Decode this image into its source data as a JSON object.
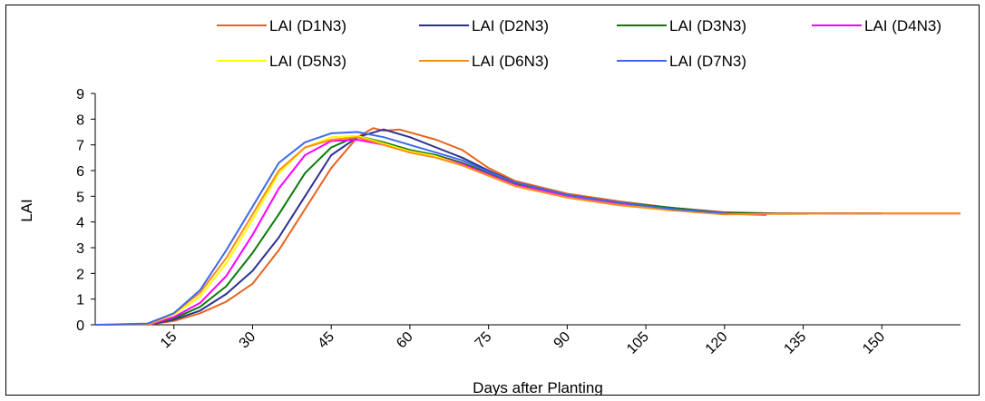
{
  "chart_data": {
    "type": "line",
    "title": "",
    "xlabel": "Days after Planting",
    "ylabel": "LAI",
    "xlim": [
      0,
      165
    ],
    "ylim": [
      0,
      9
    ],
    "x_ticks": [
      15,
      30,
      45,
      60,
      75,
      90,
      105,
      120,
      135,
      150
    ],
    "y_ticks": [
      0,
      1,
      2,
      3,
      4,
      5,
      6,
      7,
      8,
      9
    ],
    "grid": false,
    "legend_position": "top",
    "series": [
      {
        "name": "LAI (D1N3)",
        "color": "#E8641E",
        "points": [
          [
            0,
            0
          ],
          [
            10,
            0
          ],
          [
            15,
            0.15
          ],
          [
            20,
            0.45
          ],
          [
            25,
            0.9
          ],
          [
            30,
            1.6
          ],
          [
            35,
            2.9
          ],
          [
            40,
            4.5
          ],
          [
            45,
            6.1
          ],
          [
            50,
            7.3
          ],
          [
            53,
            7.65
          ],
          [
            55,
            7.55
          ],
          [
            58,
            7.6
          ],
          [
            65,
            7.2
          ],
          [
            70,
            6.8
          ],
          [
            75,
            6.1
          ],
          [
            80,
            5.6
          ],
          [
            90,
            5.1
          ],
          [
            100,
            4.8
          ],
          [
            110,
            4.55
          ],
          [
            120,
            4.38
          ],
          [
            130,
            4.33
          ],
          [
            150,
            4.33
          ],
          [
            165,
            4.33
          ]
        ]
      },
      {
        "name": "LAI (D2N3)",
        "color": "#2E3192",
        "points": [
          [
            0,
            0
          ],
          [
            10,
            0
          ],
          [
            15,
            0.2
          ],
          [
            20,
            0.55
          ],
          [
            25,
            1.2
          ],
          [
            30,
            2.1
          ],
          [
            35,
            3.4
          ],
          [
            40,
            5.0
          ],
          [
            45,
            6.6
          ],
          [
            50,
            7.3
          ],
          [
            55,
            7.6
          ],
          [
            60,
            7.3
          ],
          [
            65,
            6.9
          ],
          [
            70,
            6.5
          ],
          [
            75,
            6.0
          ],
          [
            80,
            5.55
          ],
          [
            90,
            5.05
          ],
          [
            100,
            4.75
          ],
          [
            110,
            4.55
          ],
          [
            120,
            4.35
          ],
          [
            130,
            4.33
          ],
          [
            150,
            4.33
          ]
        ]
      },
      {
        "name": "LAI (D3N3)",
        "color": "#0B7B0B",
        "points": [
          [
            0,
            0
          ],
          [
            10,
            0
          ],
          [
            15,
            0.25
          ],
          [
            20,
            0.7
          ],
          [
            25,
            1.5
          ],
          [
            30,
            2.8
          ],
          [
            35,
            4.3
          ],
          [
            40,
            5.9
          ],
          [
            45,
            6.9
          ],
          [
            50,
            7.35
          ],
          [
            55,
            7.1
          ],
          [
            60,
            6.8
          ],
          [
            65,
            6.6
          ],
          [
            70,
            6.3
          ],
          [
            75,
            5.9
          ],
          [
            80,
            5.5
          ],
          [
            90,
            5.0
          ],
          [
            100,
            4.75
          ],
          [
            110,
            4.55
          ],
          [
            120,
            4.35
          ],
          [
            130,
            4.32
          ],
          [
            136,
            4.32
          ]
        ]
      },
      {
        "name": "LAI (D4N3)",
        "color": "#FF00FF",
        "points": [
          [
            0,
            0
          ],
          [
            10,
            0
          ],
          [
            15,
            0.3
          ],
          [
            20,
            0.85
          ],
          [
            25,
            1.9
          ],
          [
            30,
            3.5
          ],
          [
            35,
            5.3
          ],
          [
            40,
            6.6
          ],
          [
            45,
            7.15
          ],
          [
            50,
            7.2
          ],
          [
            55,
            7.0
          ],
          [
            60,
            6.75
          ],
          [
            65,
            6.55
          ],
          [
            70,
            6.25
          ],
          [
            75,
            5.85
          ],
          [
            80,
            5.45
          ],
          [
            90,
            5.0
          ],
          [
            100,
            4.7
          ],
          [
            110,
            4.5
          ],
          [
            120,
            4.32
          ],
          [
            128,
            4.28
          ]
        ]
      },
      {
        "name": "LAI (D5N3)",
        "color": "#FFFF00",
        "points": [
          [
            0,
            0
          ],
          [
            10,
            0
          ],
          [
            15,
            0.4
          ],
          [
            20,
            1.1
          ],
          [
            25,
            2.4
          ],
          [
            30,
            4.1
          ],
          [
            35,
            5.9
          ],
          [
            40,
            6.9
          ],
          [
            45,
            7.3
          ],
          [
            50,
            7.35
          ],
          [
            55,
            7.05
          ],
          [
            60,
            6.75
          ],
          [
            65,
            6.55
          ],
          [
            70,
            6.2
          ],
          [
            75,
            5.8
          ],
          [
            80,
            5.4
          ],
          [
            90,
            4.95
          ],
          [
            100,
            4.65
          ],
          [
            110,
            4.45
          ],
          [
            120,
            4.3
          ]
        ]
      },
      {
        "name": "LAI (D6N3)",
        "color": "#FF8C1A",
        "points": [
          [
            0,
            0
          ],
          [
            10,
            0
          ],
          [
            15,
            0.45
          ],
          [
            20,
            1.25
          ],
          [
            25,
            2.6
          ],
          [
            30,
            4.3
          ],
          [
            35,
            6.0
          ],
          [
            40,
            6.9
          ],
          [
            45,
            7.2
          ],
          [
            50,
            7.3
          ],
          [
            55,
            7.0
          ],
          [
            60,
            6.7
          ],
          [
            65,
            6.5
          ],
          [
            70,
            6.2
          ],
          [
            75,
            5.8
          ],
          [
            80,
            5.4
          ],
          [
            90,
            4.95
          ],
          [
            100,
            4.65
          ],
          [
            110,
            4.45
          ],
          [
            120,
            4.3
          ],
          [
            130,
            4.32
          ],
          [
            150,
            4.33
          ],
          [
            165,
            4.33
          ]
        ]
      },
      {
        "name": "LAI (D7N3)",
        "color": "#3D6BE8",
        "points": [
          [
            0,
            0
          ],
          [
            10,
            0.05
          ],
          [
            15,
            0.45
          ],
          [
            20,
            1.35
          ],
          [
            25,
            2.9
          ],
          [
            30,
            4.6
          ],
          [
            35,
            6.3
          ],
          [
            40,
            7.1
          ],
          [
            45,
            7.45
          ],
          [
            50,
            7.5
          ],
          [
            55,
            7.3
          ],
          [
            60,
            7.0
          ],
          [
            65,
            6.7
          ],
          [
            70,
            6.4
          ],
          [
            75,
            5.95
          ],
          [
            80,
            5.55
          ],
          [
            90,
            5.05
          ],
          [
            100,
            4.75
          ],
          [
            110,
            4.5
          ],
          [
            120,
            4.35
          ]
        ]
      }
    ]
  }
}
